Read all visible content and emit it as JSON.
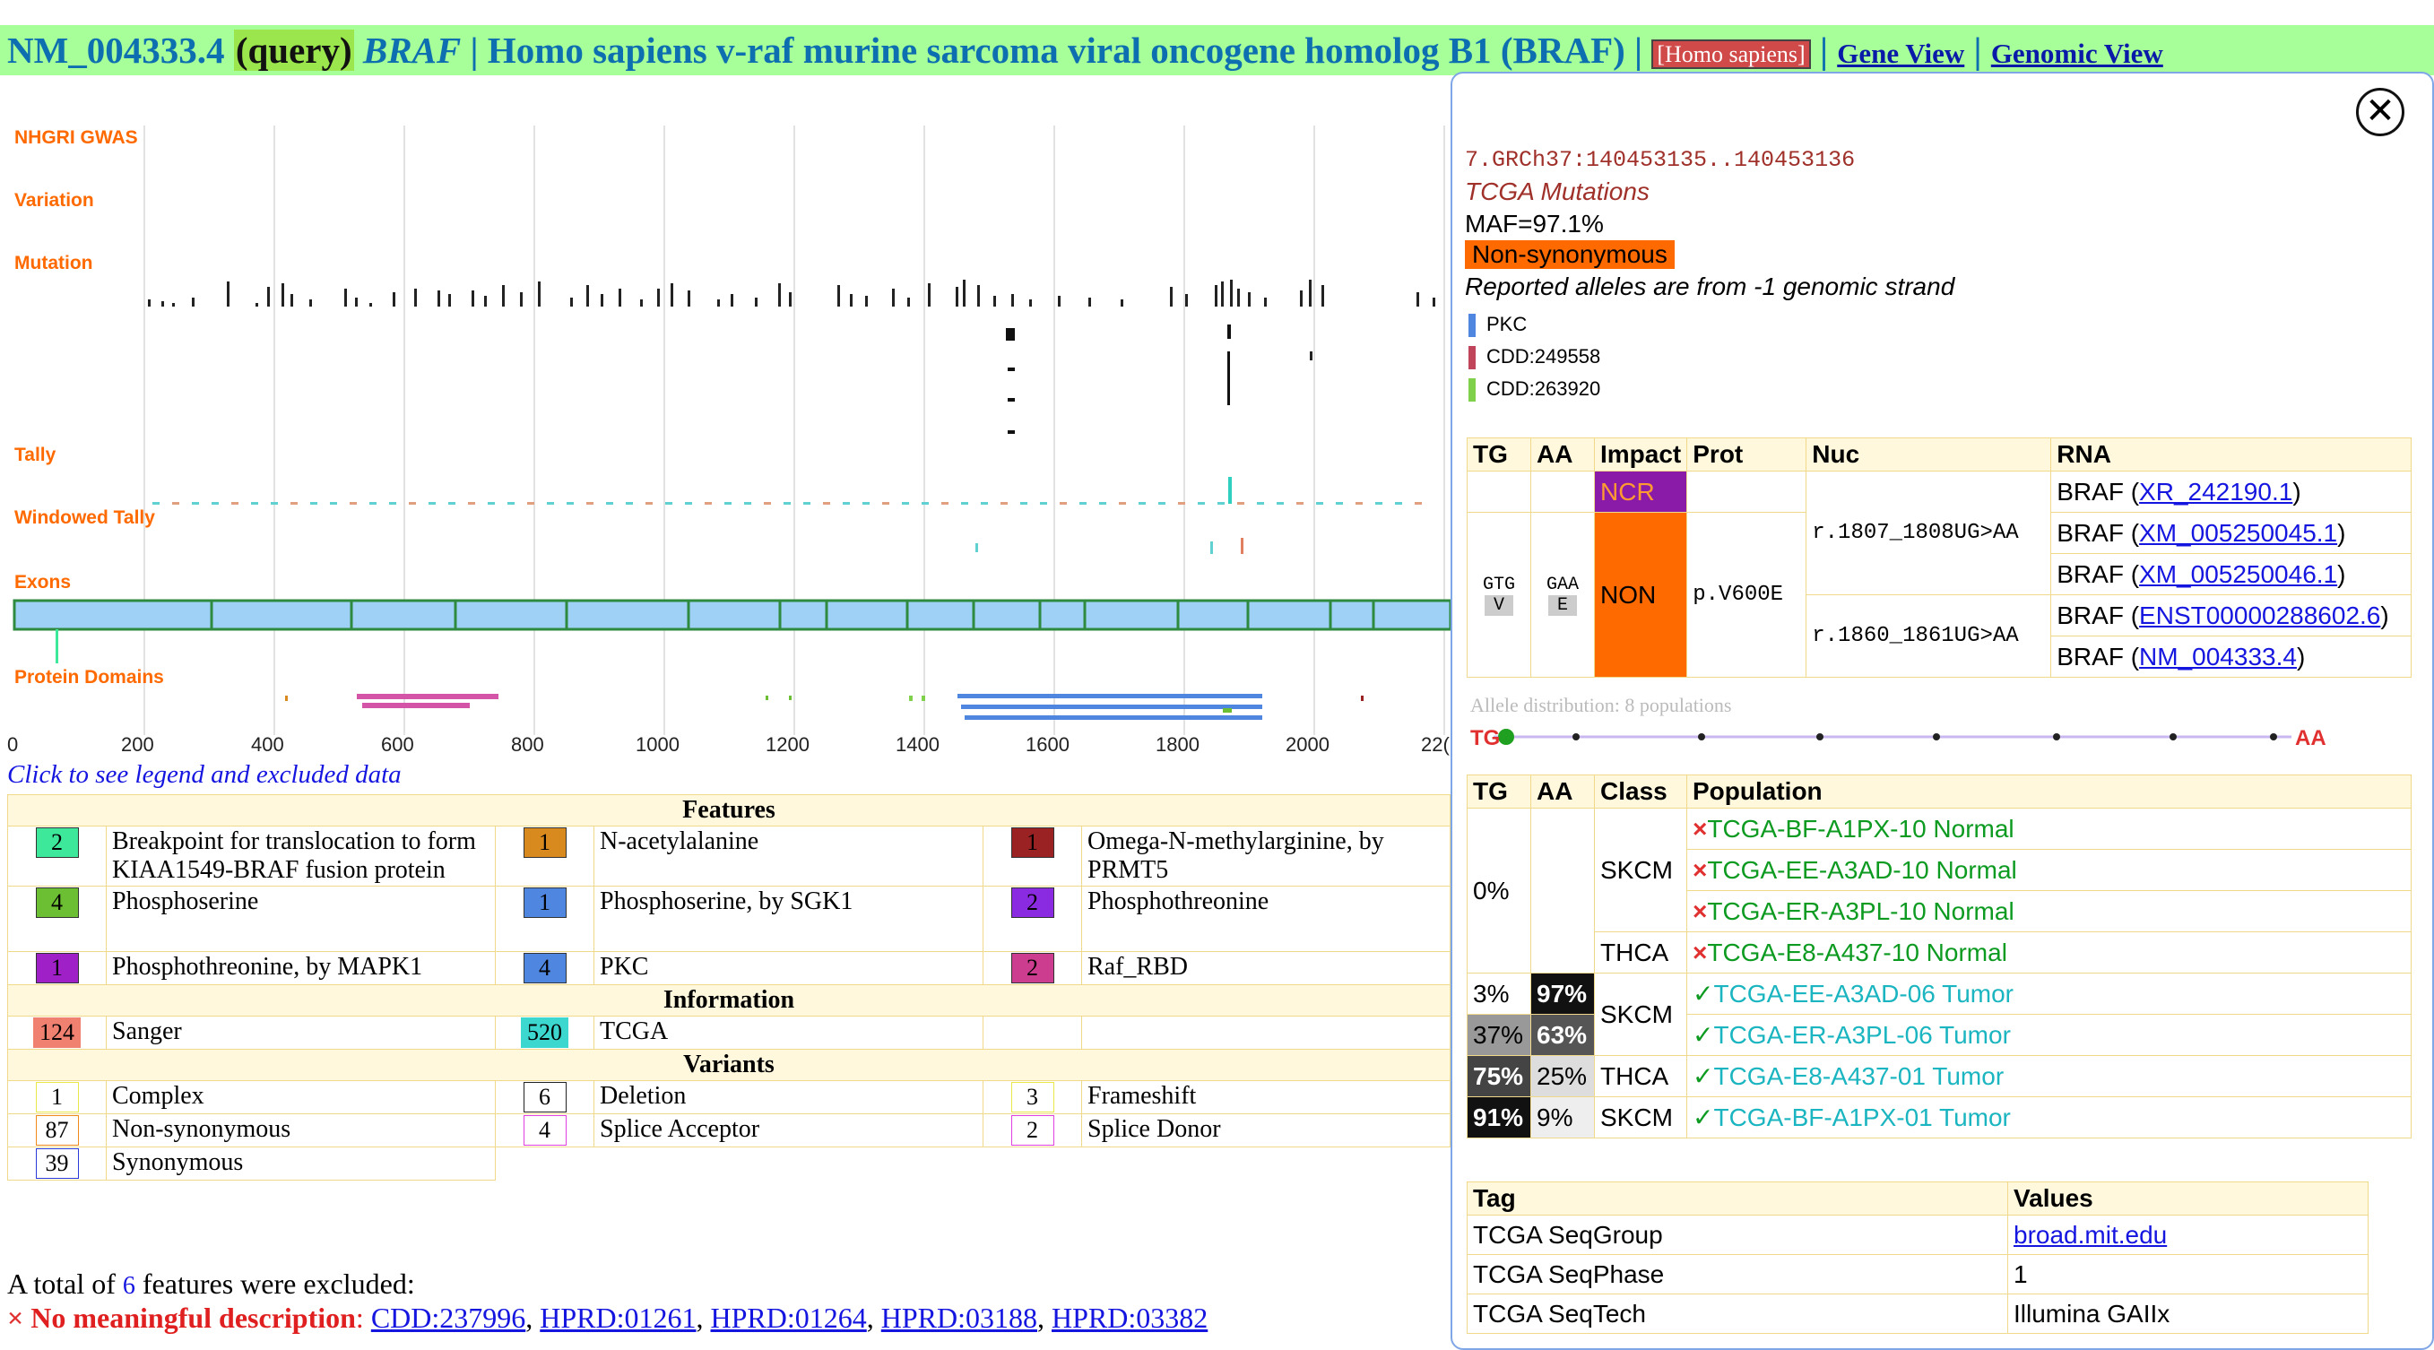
{
  "header": {
    "accession": "NM_004333.4",
    "query": "(query)",
    "gene": "BRAF",
    "sep": "|",
    "description": "Homo sapiens v-raf murine sarcoma viral oncogene homolog B1 (BRAF)",
    "species": "[Homo sapiens]",
    "gene_view": "Gene View",
    "genomic_view": "Genomic View"
  },
  "tracks": {
    "labels": [
      "NHGRI GWAS",
      "Variation",
      "Mutation",
      "Tally",
      "Windowed Tally",
      "Exons",
      "Protein Domains"
    ],
    "axis_ticks": [
      "0",
      "200",
      "400",
      "600",
      "800",
      "1000",
      "1200",
      "1400",
      "1600",
      "1800",
      "2000",
      "22("
    ],
    "click_text": "Click to see legend and excluded data"
  },
  "features": {
    "title": "Features",
    "items": [
      {
        "count": "2",
        "label": "Breakpoint for translocation to form KIAA1549-BRAF fusion protein",
        "color": "#3de89a"
      },
      {
        "count": "1",
        "label": "N-acetylalanine",
        "color": "#d98a1f"
      },
      {
        "count": "1",
        "label": "Omega-N-methylarginine, by PRMT5",
        "color": "#9b2222"
      },
      {
        "count": "4",
        "label": "Phosphoserine",
        "color": "#6cbf33"
      },
      {
        "count": "1",
        "label": "Phosphoserine, by SGK1",
        "color": "#4f86e0"
      },
      {
        "count": "2",
        "label": "Phosphothreonine",
        "color": "#8a2be2"
      },
      {
        "count": "1",
        "label": "Phosphothreonine, by MAPK1",
        "color": "#a020c8"
      },
      {
        "count": "4",
        "label": "PKC",
        "color": "#4f86e0"
      },
      {
        "count": "2",
        "label": "Raf_RBD",
        "color": "#cc3d8f"
      }
    ],
    "info_title": "Information",
    "info": [
      {
        "count": "124",
        "label": "Sanger",
        "color": "#f08070"
      },
      {
        "count": "520",
        "label": "TCGA",
        "color": "#3cd8d0"
      }
    ],
    "variants_title": "Variants",
    "variants": [
      {
        "count": "1",
        "label": "Complex",
        "border": "#e8e84a"
      },
      {
        "count": "6",
        "label": "Deletion",
        "border": "#222222"
      },
      {
        "count": "3",
        "label": "Frameshift",
        "border": "#e8e84a"
      },
      {
        "count": "87",
        "label": "Non-synonymous",
        "border": "#f08a1a"
      },
      {
        "count": "4",
        "label": "Splice Acceptor",
        "border": "#e040e0"
      },
      {
        "count": "2",
        "label": "Splice Donor",
        "border": "#e040e0"
      },
      {
        "count": "39",
        "label": "Synonymous",
        "border": "#2a3ad8"
      }
    ],
    "excluded_prefix": "A total of",
    "excluded_count": "6",
    "excluded_suffix": "features were excluded:",
    "no_desc_label": "No meaningful description",
    "no_desc_links": [
      "CDD:237996",
      "HPRD:01261",
      "HPRD:01264",
      "HPRD:03188",
      "HPRD:03382"
    ]
  },
  "popup": {
    "coords": "7.GRCh37:140453135..140453136",
    "source": "TCGA Mutations",
    "maf": "MAF=97.1%",
    "type": "Non-synonymous",
    "strand_note": "Reported alleles are from -1 genomic strand",
    "domains": [
      {
        "label": "PKC",
        "color": "#4f86e0"
      },
      {
        "label": "CDD:249558",
        "color": "#c0445a"
      },
      {
        "label": "CDD:263920",
        "color": "#7fd04a"
      }
    ],
    "impact_table": {
      "headers": [
        "TG",
        "AA",
        "Impact",
        "Prot",
        "Nuc",
        "RNA"
      ],
      "ncr": "NCR",
      "non": "NON",
      "codon_ref": "GTG",
      "codon_alt": "GAA",
      "aa_ref": "V",
      "aa_alt": "E",
      "prot": "p.V600E",
      "nuc1": "r.1807_1808UG>AA",
      "nuc2": "r.1860_1861UG>AA",
      "rna": [
        {
          "gene": "BRAF",
          "acc": "XR_242190.1"
        },
        {
          "gene": "BRAF",
          "acc": "XM_005250045.1"
        },
        {
          "gene": "BRAF",
          "acc": "XM_005250046.1"
        },
        {
          "gene": "BRAF",
          "acc": "ENST00000288602.6"
        },
        {
          "gene": "BRAF",
          "acc": "NM_004333.4"
        }
      ]
    },
    "allele_dist": "Allele distribution: 8 populations",
    "allele_left": "TG",
    "allele_right": "AA",
    "pop_table": {
      "headers": [
        "TG",
        "AA",
        "Class",
        "Population"
      ],
      "rows": [
        {
          "tg": "0%",
          "aa": "",
          "cls": "SKCM",
          "pop": "TCGA-BF-A1PX-10 Normal",
          "ok": false
        },
        {
          "tg": "",
          "aa": "",
          "cls": "",
          "pop": "TCGA-EE-A3AD-10 Normal",
          "ok": false
        },
        {
          "tg": "",
          "aa": "",
          "cls": "",
          "pop": "TCGA-ER-A3PL-10 Normal",
          "ok": false
        },
        {
          "tg": "",
          "aa": "",
          "cls": "THCA",
          "pop": "TCGA-E8-A437-10 Normal",
          "ok": false
        },
        {
          "tg": "3%",
          "aa": "97%",
          "cls": "SKCM",
          "pop": "TCGA-EE-A3AD-06 Tumor",
          "ok": true
        },
        {
          "tg": "37%",
          "aa": "63%",
          "cls": "",
          "pop": "TCGA-ER-A3PL-06 Tumor",
          "ok": true
        },
        {
          "tg": "75%",
          "aa": "25%",
          "cls": "THCA",
          "pop": "TCGA-E8-A437-01 Tumor",
          "ok": true
        },
        {
          "tg": "91%",
          "aa": "9%",
          "cls": "SKCM",
          "pop": "TCGA-BF-A1PX-01 Tumor",
          "ok": true
        }
      ]
    },
    "tag_table": {
      "headers": [
        "Tag",
        "Values"
      ],
      "rows": [
        {
          "tag": "TCGA SeqGroup",
          "value": "broad.mit.edu",
          "link": true
        },
        {
          "tag": "TCGA SeqPhase",
          "value": "1",
          "link": false
        },
        {
          "tag": "TCGA SeqTech",
          "value": "Illumina GAIIx",
          "link": false
        }
      ]
    }
  }
}
